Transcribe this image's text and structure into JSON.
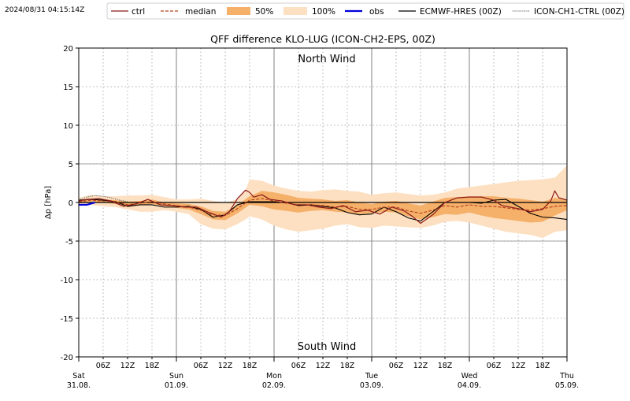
{
  "timestamp": "2024/08/31 04:15:14Z",
  "chart_data": {
    "type": "line",
    "title": "QFF difference KLO-LUG (ICON-CH2-EPS, 00Z)",
    "ylabel": "Δp [hPa]",
    "xlabel": "",
    "ylim": [
      -20,
      20
    ],
    "yticks": [
      -20,
      -15,
      -10,
      -5,
      0,
      5,
      10,
      15,
      20
    ],
    "xlim_hours": [
      0,
      120
    ],
    "grid": true,
    "legend_position": "top",
    "annotations": {
      "north": "North Wind",
      "south": "South Wind"
    },
    "day_ticks": [
      {
        "h": 0,
        "day": "Sat",
        "date": "31.08."
      },
      {
        "h": 24,
        "day": "Sun",
        "date": "01.09."
      },
      {
        "h": 48,
        "day": "Mon",
        "date": "02.09."
      },
      {
        "h": 72,
        "day": "Tue",
        "date": "03.09."
      },
      {
        "h": 96,
        "day": "Wed",
        "date": "04.09."
      },
      {
        "h": 120,
        "day": "Thu",
        "date": "05.09."
      }
    ],
    "hour_ticks": [
      {
        "h": 6,
        "label": "06Z"
      },
      {
        "h": 12,
        "label": "12Z"
      },
      {
        "h": 18,
        "label": "18Z"
      },
      {
        "h": 30,
        "label": "06Z"
      },
      {
        "h": 36,
        "label": "12Z"
      },
      {
        "h": 42,
        "label": "18Z"
      },
      {
        "h": 54,
        "label": "06Z"
      },
      {
        "h": 60,
        "label": "12Z"
      },
      {
        "h": 66,
        "label": "18Z"
      },
      {
        "h": 78,
        "label": "06Z"
      },
      {
        "h": 84,
        "label": "12Z"
      },
      {
        "h": 90,
        "label": "18Z"
      },
      {
        "h": 102,
        "label": "06Z"
      },
      {
        "h": 108,
        "label": "12Z"
      },
      {
        "h": 114,
        "label": "18Z"
      }
    ],
    "legend": [
      {
        "label": "ctrl",
        "style": "ctrl"
      },
      {
        "label": "median",
        "style": "median"
      },
      {
        "label": "50%",
        "style": "p50"
      },
      {
        "label": "100%",
        "style": "p100"
      },
      {
        "label": "obs",
        "style": "obs"
      },
      {
        "label": "ECMWF-HRES (00Z)",
        "style": "ecmwf"
      },
      {
        "label": "ICON-CH1-CTRL (00Z)",
        "style": "ch1"
      }
    ],
    "colors": {
      "ctrl": "#8b1a1a",
      "median": "#b5401a",
      "p50": "#f5b06a",
      "p100": "#fde0c2",
      "obs": "#0000dd",
      "ecmwf": "#000000",
      "ch1": "#555555",
      "zero_line": "#000000",
      "grid": "#b0b0b0",
      "day_line": "#808080",
      "annotation": "#7f7f7f"
    },
    "series": [
      {
        "key": "band100",
        "name": "100%",
        "x": [
          0,
          3,
          6,
          9,
          12,
          15,
          18,
          21,
          24,
          27,
          30,
          33,
          36,
          39,
          41,
          42,
          45,
          48,
          51,
          54,
          57,
          60,
          63,
          66,
          69,
          72,
          75,
          78,
          81,
          84,
          87,
          90,
          93,
          96,
          99,
          102,
          105,
          108,
          111,
          114,
          117,
          120
        ],
        "upper": [
          0.6,
          1.0,
          0.8,
          0.8,
          0.9,
          0.9,
          1.0,
          0.7,
          0.4,
          0.4,
          0.5,
          0.2,
          0.0,
          0.4,
          1.6,
          3.0,
          2.8,
          2.2,
          1.8,
          1.5,
          1.4,
          1.6,
          1.7,
          1.5,
          1.4,
          1.0,
          1.2,
          1.3,
          1.1,
          0.9,
          1.0,
          1.3,
          1.8,
          2.0,
          2.2,
          2.4,
          2.6,
          2.8,
          2.9,
          3.0,
          3.2,
          4.8
        ],
        "lower": [
          -0.3,
          -0.3,
          -0.5,
          -0.6,
          -0.9,
          -1.2,
          -1.2,
          -1.0,
          -1.2,
          -1.5,
          -2.8,
          -3.4,
          -3.5,
          -2.8,
          -2.2,
          -1.8,
          -2.2,
          -3.0,
          -3.5,
          -3.8,
          -3.6,
          -3.4,
          -3.0,
          -2.8,
          -3.2,
          -3.3,
          -3.0,
          -3.1,
          -3.2,
          -3.3,
          -3.0,
          -2.5,
          -2.4,
          -2.6,
          -3.0,
          -3.4,
          -3.8,
          -4.0,
          -4.2,
          -4.6,
          -3.8,
          -3.6
        ]
      },
      {
        "key": "band50",
        "name": "50%",
        "x": [
          0,
          3,
          6,
          9,
          12,
          15,
          18,
          21,
          24,
          27,
          30,
          33,
          36,
          39,
          42,
          45,
          48,
          51,
          54,
          57,
          60,
          63,
          66,
          69,
          72,
          75,
          78,
          81,
          84,
          87,
          90,
          93,
          96,
          99,
          102,
          105,
          108,
          111,
          114,
          117,
          120
        ],
        "upper": [
          0.3,
          0.5,
          0.4,
          0.3,
          0.1,
          0.2,
          0.4,
          0.0,
          -0.1,
          -0.2,
          -0.5,
          -1.1,
          -1.2,
          -0.3,
          0.8,
          1.5,
          1.3,
          1.0,
          0.6,
          0.5,
          0.4,
          0.2,
          0.3,
          0.0,
          -0.2,
          0.1,
          0.2,
          -0.1,
          -0.4,
          0.1,
          0.6,
          0.7,
          0.8,
          0.8,
          0.8,
          0.6,
          0.5,
          0.3,
          0.1,
          0.6,
          0.3
        ],
        "lower": [
          0.0,
          0.1,
          0.0,
          -0.2,
          -0.6,
          -0.4,
          -0.2,
          -0.5,
          -0.7,
          -0.9,
          -1.5,
          -2.2,
          -2.3,
          -1.4,
          -0.3,
          -0.5,
          -0.9,
          -1.1,
          -1.3,
          -1.1,
          -1.0,
          -1.2,
          -1.3,
          -1.5,
          -1.4,
          -1.2,
          -1.3,
          -1.8,
          -2.2,
          -1.9,
          -1.5,
          -1.6,
          -1.3,
          -1.7,
          -2.0,
          -2.2,
          -2.4,
          -2.6,
          -2.5,
          -1.7,
          -1.0
        ]
      },
      {
        "key": "median",
        "name": "median",
        "x": [
          0,
          3,
          6,
          9,
          12,
          15,
          18,
          21,
          24,
          27,
          30,
          33,
          36,
          39,
          42,
          45,
          48,
          51,
          54,
          57,
          60,
          63,
          66,
          69,
          72,
          75,
          78,
          81,
          84,
          87,
          90,
          93,
          96,
          99,
          102,
          105,
          108,
          111,
          114,
          117,
          120
        ],
        "y": [
          0.1,
          0.3,
          0.2,
          0.1,
          -0.3,
          -0.1,
          0.1,
          -0.2,
          -0.4,
          -0.6,
          -1.0,
          -1.6,
          -1.7,
          -0.8,
          0.3,
          0.5,
          0.2,
          -0.1,
          -0.3,
          -0.3,
          -0.4,
          -0.6,
          -0.5,
          -0.9,
          -0.9,
          -0.6,
          -0.6,
          -1.1,
          -1.4,
          -1.0,
          -0.4,
          -0.6,
          -0.3,
          -0.5,
          -0.5,
          -0.7,
          -0.9,
          -1.0,
          -0.8,
          -0.5,
          -0.4
        ]
      },
      {
        "key": "ctrl",
        "name": "ctrl",
        "x": [
          0,
          2,
          5,
          8,
          11,
          14,
          17,
          20,
          23,
          26,
          29,
          32,
          35,
          37,
          39,
          41,
          42,
          43,
          45,
          47,
          50,
          53,
          56,
          59,
          62,
          65,
          68,
          71,
          74,
          77,
          80,
          82,
          84,
          87,
          90,
          93,
          96,
          99,
          102,
          104,
          106,
          108,
          111,
          114,
          116,
          117,
          118,
          120
        ],
        "y": [
          0.2,
          0.4,
          0.5,
          0.2,
          -0.5,
          -0.2,
          0.4,
          -0.3,
          -0.4,
          -0.6,
          -0.6,
          -1.3,
          -1.9,
          -1.2,
          0.5,
          1.6,
          1.3,
          0.7,
          1.0,
          0.4,
          0.2,
          -0.3,
          -0.3,
          -0.6,
          -0.8,
          -0.4,
          -1.2,
          -1.0,
          -1.5,
          -0.6,
          -1.1,
          -1.8,
          -2.7,
          -1.6,
          0.0,
          0.6,
          0.7,
          0.7,
          0.3,
          -0.4,
          -0.6,
          -0.8,
          -1.2,
          -0.9,
          0.2,
          1.5,
          0.6,
          0.3
        ]
      },
      {
        "key": "ecmwf",
        "name": "ECMWF-HRES (00Z)",
        "x": [
          0,
          3,
          6,
          9,
          12,
          15,
          18,
          21,
          24,
          27,
          30,
          33,
          36,
          39,
          42,
          45,
          48,
          51,
          54,
          57,
          60,
          63,
          66,
          69,
          72,
          75,
          78,
          81,
          84,
          87,
          90,
          93,
          96,
          99,
          102,
          105,
          108,
          111,
          114,
          117,
          120
        ],
        "y": [
          0.3,
          0.4,
          0.3,
          0.1,
          -0.5,
          -0.3,
          -0.3,
          -0.6,
          -0.6,
          -0.5,
          -0.9,
          -1.9,
          -1.6,
          -0.3,
          0.1,
          0.1,
          0.1,
          0.0,
          -0.4,
          -0.3,
          -0.5,
          -0.7,
          -1.3,
          -1.6,
          -1.5,
          -0.6,
          -1.2,
          -2.0,
          -2.4,
          -1.2,
          0.0,
          0.0,
          0.0,
          -0.1,
          0.3,
          0.4,
          -0.5,
          -1.4,
          -1.9,
          -2.0,
          -2.2
        ]
      },
      {
        "key": "ch1",
        "name": "ICON-CH1-CTRL (00Z)",
        "x": [
          0,
          2,
          4,
          6,
          8,
          10,
          12
        ],
        "y": [
          0.3,
          0.7,
          0.9,
          0.8,
          0.6,
          0.3,
          0.1
        ]
      },
      {
        "key": "obs",
        "name": "obs",
        "x": [
          0,
          2,
          4
        ],
        "y": [
          -0.3,
          -0.3,
          0.0
        ]
      }
    ]
  }
}
